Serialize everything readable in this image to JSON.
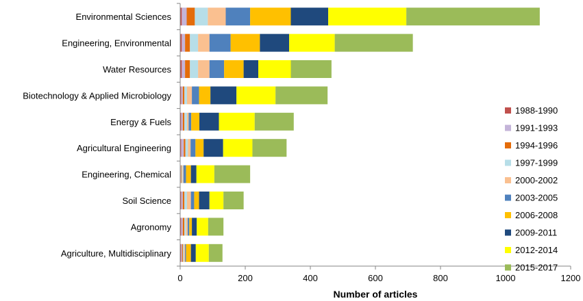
{
  "chart_data": {
    "type": "bar",
    "orientation": "horizontal",
    "stacked": true,
    "title": "",
    "xlabel": "Number of articles",
    "ylabel": "",
    "xlim": [
      0,
      1200
    ],
    "xticks": [
      0,
      200,
      400,
      600,
      800,
      1000,
      1200
    ],
    "legend_position": "right",
    "categories": [
      "Environmental Sciences",
      "Engineering, Environmental",
      "Water Resources",
      "Biotechnology & Applied Microbiology",
      "Energy & Fuels",
      "Agricultural Engineering",
      "Engineering, Chemical",
      "Soil Science",
      "Agronomy",
      "Agriculture, Multidisciplinary"
    ],
    "series": [
      {
        "name": "1988-1990",
        "color": "#c0504d",
        "values": [
          5,
          5,
          5,
          3,
          3,
          3,
          1,
          3,
          3,
          3
        ]
      },
      {
        "name": "1991-1993",
        "color": "#c4b4d9",
        "values": [
          15,
          10,
          10,
          5,
          5,
          8,
          1,
          5,
          5,
          3
        ]
      },
      {
        "name": "1994-1996",
        "color": "#e46c0a",
        "values": [
          25,
          15,
          15,
          5,
          5,
          5,
          2,
          5,
          5,
          3
        ]
      },
      {
        "name": "1997-1999",
        "color": "#b7dee8",
        "values": [
          40,
          25,
          25,
          8,
          8,
          8,
          3,
          8,
          5,
          3
        ]
      },
      {
        "name": "2000-2002",
        "color": "#fac090",
        "values": [
          55,
          35,
          35,
          15,
          5,
          8,
          3,
          12,
          5,
          3
        ]
      },
      {
        "name": "2003-2005",
        "color": "#4f81bd",
        "values": [
          75,
          65,
          45,
          22,
          8,
          15,
          8,
          10,
          5,
          3
        ]
      },
      {
        "name": "2006-2008",
        "color": "#ffc000",
        "values": [
          125,
          90,
          60,
          35,
          25,
          25,
          15,
          15,
          8,
          15
        ]
      },
      {
        "name": "2009-2011",
        "color": "#1f497d",
        "values": [
          115,
          90,
          45,
          80,
          60,
          60,
          17,
          32,
          15,
          15
        ]
      },
      {
        "name": "2012-2014",
        "color": "#ffff00",
        "values": [
          240,
          140,
          100,
          120,
          110,
          90,
          55,
          43,
          35,
          40
        ]
      },
      {
        "name": "2015-2017",
        "color": "#9bbb59",
        "values": [
          410,
          240,
          125,
          160,
          120,
          105,
          110,
          62,
          47,
          42
        ]
      }
    ]
  }
}
